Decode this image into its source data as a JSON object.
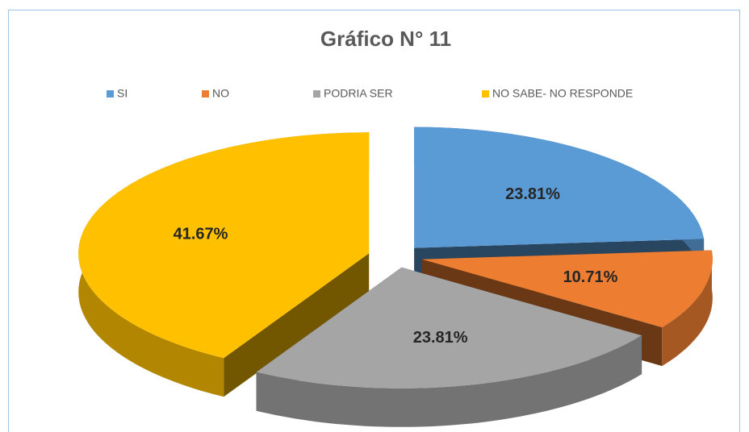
{
  "chart_data": {
    "type": "pie",
    "title": "Gráfico N° 11",
    "categories": [
      "SI",
      "NO",
      "PODRIA SER",
      "NO SABE- NO RESPONDE"
    ],
    "values": [
      23.81,
      10.71,
      23.81,
      41.67
    ],
    "value_labels": [
      "23.81%",
      "10.71%",
      "23.81%",
      "41.67%"
    ],
    "colors": [
      "#5b9bd5",
      "#ed7d31",
      "#a5a5a5",
      "#ffc000"
    ],
    "legend": "top"
  }
}
